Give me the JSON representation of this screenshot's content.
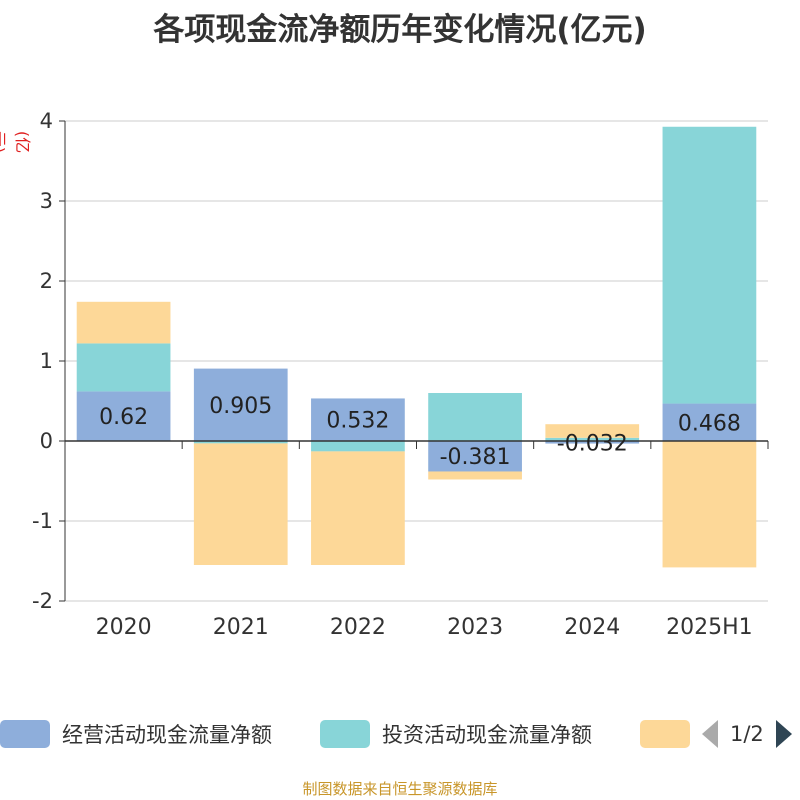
{
  "title": "各项现金流净额历年变化情况(亿元)",
  "unit_label": "(亿元)",
  "source": "制图数据来自恒生聚源数据库",
  "legend": {
    "items": [
      {
        "label": "经营活动现金流量净额",
        "color": "#8eaedb"
      },
      {
        "label": "投资活动现金流量净额",
        "color": "#88d5d8"
      },
      {
        "label": "",
        "color": "#fdd898"
      }
    ],
    "page": "1/2"
  },
  "chart_data": {
    "type": "bar",
    "stacked": true,
    "categories": [
      "2020",
      "2021",
      "2022",
      "2023",
      "2024",
      "2025H1"
    ],
    "ylim": [
      -2,
      4
    ],
    "yticks": [
      -2,
      -1,
      0,
      1,
      2,
      3,
      4
    ],
    "grid": true,
    "series": [
      {
        "name": "经营活动现金流量净额",
        "color": "#8eaedb",
        "values": [
          0.62,
          0.905,
          0.532,
          -0.381,
          -0.032,
          0.468
        ],
        "labels": [
          "0.62",
          "0.905",
          "0.532",
          "-0.381",
          "-0.032",
          "0.468"
        ]
      },
      {
        "name": "投资活动现金流量净额",
        "color": "#88d5d8",
        "values": [
          0.6,
          -0.03,
          -0.13,
          0.6,
          0.04,
          3.46
        ]
      },
      {
        "name": "",
        "color": "#fdd898",
        "values": [
          0.52,
          -1.52,
          -1.42,
          -0.1,
          0.17,
          -1.58
        ]
      }
    ]
  }
}
